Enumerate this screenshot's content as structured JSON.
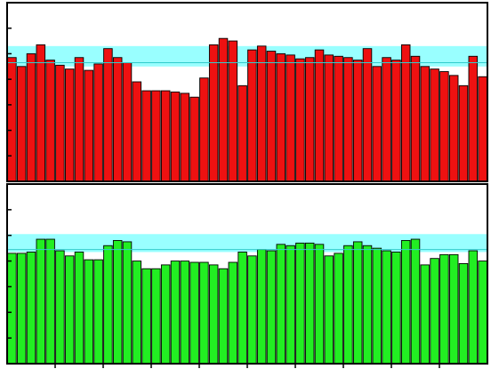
{
  "chart_data": [
    {
      "type": "bar",
      "ylim": [
        0,
        7
      ],
      "yticks": [
        0,
        1,
        2,
        3,
        4,
        5,
        6,
        7
      ],
      "grid": false,
      "band": {
        "low": 4.5,
        "high": 5.3,
        "center": 4.65,
        "color": "#99ffff",
        "line_color": "#33cccc"
      },
      "bar_color": "#ee1111",
      "values": [
        4.85,
        4.5,
        5.0,
        5.35,
        4.75,
        4.55,
        4.4,
        4.85,
        4.35,
        4.6,
        5.2,
        4.85,
        4.65,
        3.9,
        3.55,
        3.55,
        3.55,
        3.5,
        3.45,
        3.3,
        4.05,
        5.35,
        5.6,
        5.5,
        3.75,
        5.15,
        5.3,
        5.1,
        5.0,
        4.95,
        4.8,
        4.85,
        5.15,
        4.95,
        4.9,
        4.85,
        4.75,
        5.2,
        4.5,
        4.85,
        4.75,
        5.35,
        4.9,
        4.5,
        4.4,
        4.3,
        4.15,
        3.75,
        4.9,
        4.1
      ]
    },
    {
      "type": "bar",
      "ylim": [
        0,
        7
      ],
      "yticks": [
        0,
        1,
        2,
        3,
        4,
        5,
        6,
        7
      ],
      "xticks": 10,
      "grid": false,
      "band": {
        "low": 4.35,
        "high": 5.05,
        "center": 4.45,
        "color": "#99ffff",
        "line_color": "#33cccc"
      },
      "bar_color": "#22ee22",
      "values": [
        4.3,
        4.3,
        4.35,
        4.85,
        4.85,
        4.4,
        4.2,
        4.35,
        4.05,
        4.05,
        4.6,
        4.8,
        4.75,
        4.0,
        3.7,
        3.7,
        3.85,
        4.0,
        4.0,
        3.95,
        3.95,
        3.85,
        3.7,
        3.95,
        4.35,
        4.2,
        4.45,
        4.4,
        4.65,
        4.6,
        4.7,
        4.7,
        4.65,
        4.2,
        4.3,
        4.6,
        4.75,
        4.6,
        4.5,
        4.4,
        4.35,
        4.8,
        4.85,
        3.85,
        4.1,
        4.25,
        4.25,
        3.9,
        4.4,
        4.0
      ]
    }
  ]
}
